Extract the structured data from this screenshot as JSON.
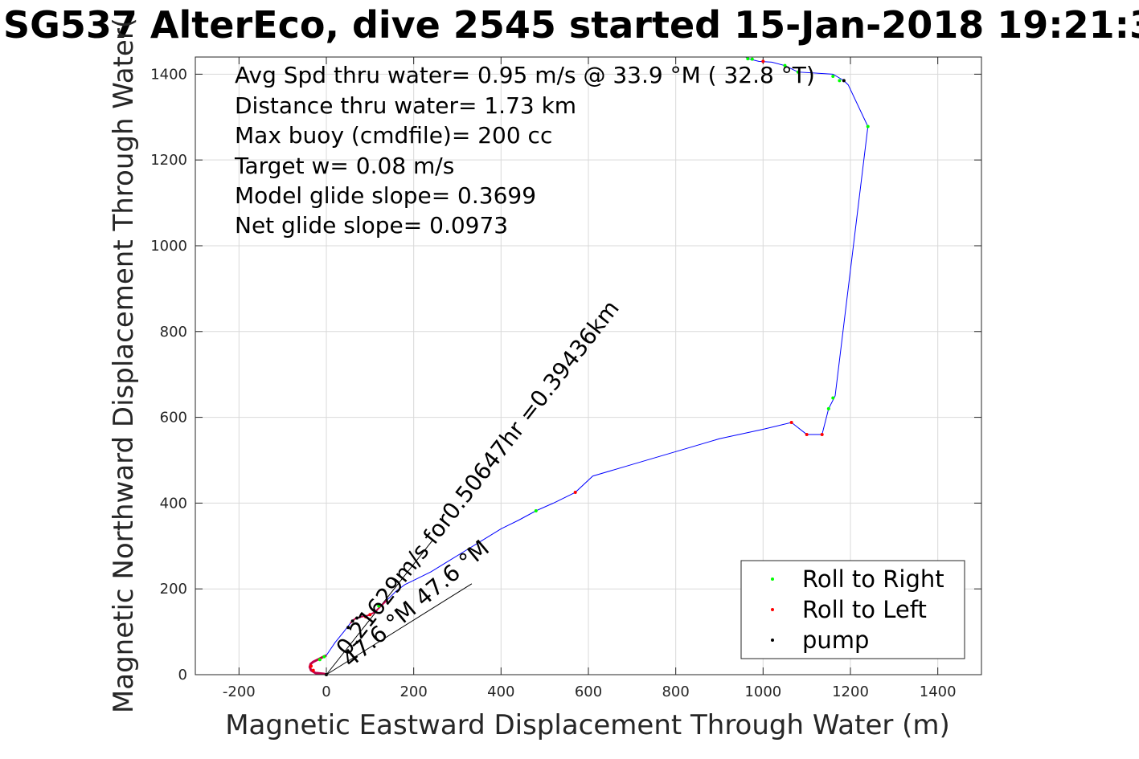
{
  "chart_data": {
    "type": "line",
    "title": "SG537 AlterEco, dive 2545 started 15-Jan-2018 19:21:3",
    "xlabel": "Magnetic Eastward Displacement Through Water (m)",
    "ylabel": "Magnetic Northward Displacement Through Water(",
    "xlim": [
      -300,
      1500
    ],
    "ylim": [
      0,
      1440
    ],
    "xticks": [
      -200,
      0,
      200,
      400,
      600,
      800,
      1000,
      1200,
      1400
    ],
    "yticks": [
      0,
      200,
      400,
      600,
      800,
      1000,
      1200,
      1400
    ],
    "grid": true,
    "legend_position": "bottom-right",
    "stats": [
      "Avg Spd thru water=  0.95 m/s @  33.9 °M ( 32.8 °T)",
      "Distance thru water=  1.73 km",
      "Max buoy (cmdfile)= 200 cc",
      "Target w= 0.08 m/s",
      "Model glide slope= 0.3699",
      "Net glide slope= 0.0973"
    ],
    "current_labels": [
      "0.21629m/s for0.50647hr =0.39436km",
      "47.6 °M  47.6 °M"
    ],
    "colors": {
      "track": "#0000ff",
      "roll_right": "#00ff00",
      "roll_left": "#ff0000",
      "pump": "#000000",
      "axes": "#262626",
      "grid": "#d9d9d9",
      "loop": "#c0004a"
    },
    "series": [
      {
        "name": "track",
        "points": [
          [
            0,
            0
          ],
          [
            -5,
            2
          ],
          [
            -15,
            3
          ],
          [
            -25,
            4
          ],
          [
            -35,
            10
          ],
          [
            -38,
            18
          ],
          [
            -36,
            25
          ],
          [
            -30,
            30
          ],
          [
            -20,
            35
          ],
          [
            -10,
            40
          ],
          [
            0,
            45
          ],
          [
            20,
            75
          ],
          [
            40,
            100
          ],
          [
            55,
            120
          ],
          [
            65,
            130
          ],
          [
            80,
            135
          ],
          [
            95,
            138
          ],
          [
            110,
            145
          ],
          [
            125,
            160
          ],
          [
            140,
            175
          ],
          [
            160,
            195
          ],
          [
            180,
            210
          ],
          [
            200,
            220
          ],
          [
            240,
            240
          ],
          [
            280,
            265
          ],
          [
            320,
            290
          ],
          [
            360,
            315
          ],
          [
            400,
            340
          ],
          [
            440,
            360
          ],
          [
            480,
            382
          ],
          [
            520,
            400
          ],
          [
            570,
            425
          ],
          [
            610,
            463
          ],
          [
            700,
            490
          ],
          [
            800,
            520
          ],
          [
            900,
            550
          ],
          [
            1000,
            572
          ],
          [
            1065,
            588
          ],
          [
            1100,
            560
          ],
          [
            1135,
            560
          ],
          [
            1150,
            620
          ],
          [
            1165,
            650
          ],
          [
            1240,
            1278
          ],
          [
            1195,
            1375
          ],
          [
            1185,
            1385
          ],
          [
            1160,
            1400
          ],
          [
            1080,
            1405
          ],
          [
            1050,
            1420
          ],
          [
            1020,
            1428
          ],
          [
            990,
            1430
          ],
          [
            970,
            1435
          ],
          [
            960,
            1440
          ]
        ]
      },
      {
        "name": "Roll to Right",
        "points": [
          [
            -15,
            35
          ],
          [
            -5,
            42
          ],
          [
            120,
            160
          ],
          [
            480,
            382
          ],
          [
            1150,
            620
          ],
          [
            1160,
            645
          ],
          [
            1240,
            1278
          ],
          [
            1160,
            1395
          ],
          [
            1175,
            1385
          ],
          [
            1080,
            1405
          ],
          [
            1050,
            1420
          ],
          [
            975,
            1435
          ],
          [
            965,
            1436
          ]
        ]
      },
      {
        "name": "Roll to Left",
        "points": [
          [
            -35,
            20
          ],
          [
            -30,
            10
          ],
          [
            90,
            135
          ],
          [
            100,
            140
          ],
          [
            570,
            425
          ],
          [
            1065,
            588
          ],
          [
            1100,
            560
          ],
          [
            1135,
            560
          ],
          [
            1000,
            1430
          ]
        ]
      },
      {
        "name": "pump",
        "points": [
          [
            0,
            0
          ],
          [
            50,
            110
          ],
          [
            60,
            125
          ],
          [
            70,
            132
          ],
          [
            1185,
            1385
          ]
        ]
      },
      {
        "name": "current-line-1",
        "points": [
          [
            0,
            0
          ],
          [
            243,
            313
          ]
        ]
      },
      {
        "name": "current-line-2",
        "points": [
          [
            0,
            0
          ],
          [
            333,
            212
          ]
        ]
      }
    ],
    "legend": [
      "Roll to Right",
      "Roll to Left",
      "pump"
    ]
  }
}
